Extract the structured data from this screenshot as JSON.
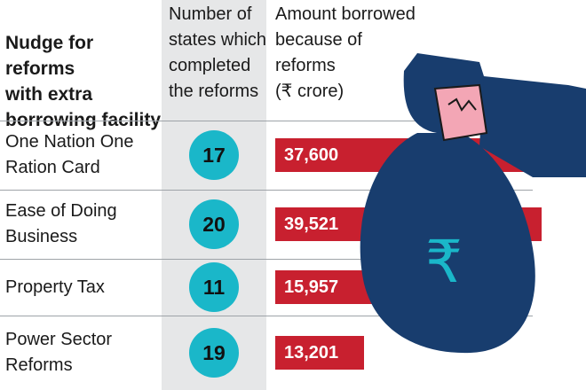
{
  "colors": {
    "bar": "#c8202f",
    "badge": "#1ab7c9",
    "bag": "#183d6e",
    "cuff": "#f3a6b5"
  },
  "headers": {
    "main": "Nudge for reforms\nwith extra\nborrowing facility",
    "count": "Number of\nstates which\ncompleted\nthe reforms",
    "amount": "Amount borrowed\nbecause of\nreforms\n(₹ crore)"
  },
  "icon": {
    "name": "money-bag-icon",
    "symbol": "₹"
  },
  "chart_data": {
    "type": "table",
    "columns": [
      "Nudge for reforms with extra borrowing facility",
      "Number of states which completed the reforms",
      "Amount borrowed because of reforms (₹ crore)"
    ],
    "rows": [
      {
        "reform": "One Nation One\nRation Card",
        "states": "17",
        "amount": 37600,
        "amount_label": "37,600"
      },
      {
        "reform": "Ease of Doing\nBusiness",
        "states": "20",
        "amount": 39521,
        "amount_label": "39,521"
      },
      {
        "reform": "Property Tax",
        "states": "11",
        "amount": 15957,
        "amount_label": "15,957"
      },
      {
        "reform": "Power Sector\nReforms",
        "states": "19",
        "amount": 13201,
        "amount_label": "13,201"
      }
    ]
  }
}
